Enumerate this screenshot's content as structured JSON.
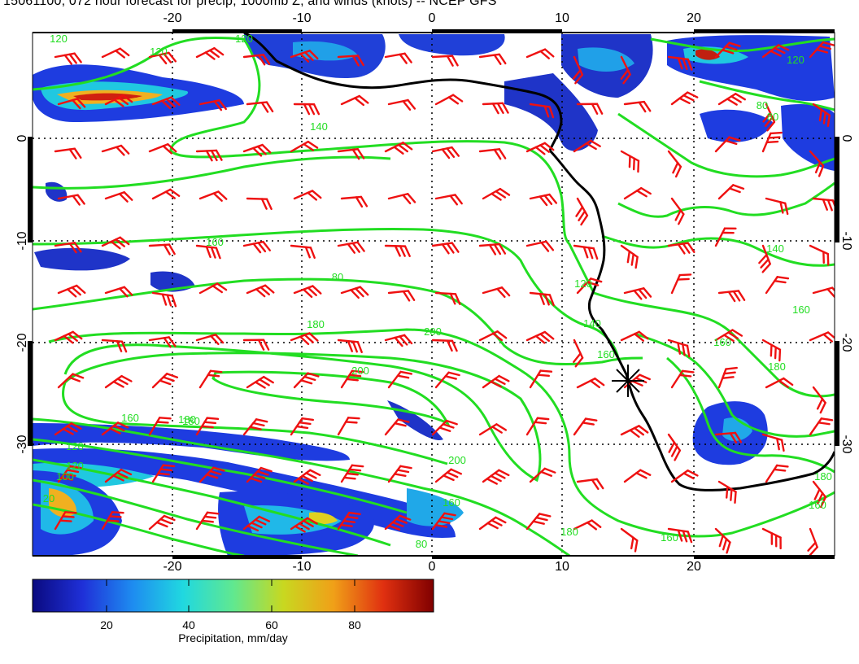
{
  "title": "15061100, 072 hour forecast for precip, 1000mb Z, and winds (knots) -- NCEP GFS",
  "map": {
    "lon_ticks": [
      "-20",
      "-10",
      "0",
      "10",
      "20"
    ],
    "lat_ticks": [
      "0",
      "-10",
      "-20",
      "-30"
    ],
    "contour_color": "#22dd22",
    "coast_color": "#000000",
    "barb_color": "#ee1111",
    "marker": "asterisk-marker"
  },
  "contour_labels": [
    "120",
    "120",
    "120",
    "140",
    "160",
    "80",
    "180",
    "200",
    "180",
    "160",
    "120",
    "200",
    "160",
    "180",
    "160",
    "200",
    "180",
    "20",
    "120",
    "100",
    "80",
    "160",
    "140",
    "120",
    "160",
    "180",
    "140",
    "160",
    "180",
    "160",
    "120",
    "80",
    "80"
  ],
  "colorbar": {
    "label": "Precipitation, mm/day",
    "ticks": [
      "20",
      "40",
      "60",
      "80"
    ],
    "range": [
      0,
      97
    ],
    "colors": [
      "#0a0a80",
      "#1f30d8",
      "#1e8cf0",
      "#20d8e0",
      "#60e890",
      "#c8d820",
      "#f0a018",
      "#e03010",
      "#800000"
    ]
  }
}
